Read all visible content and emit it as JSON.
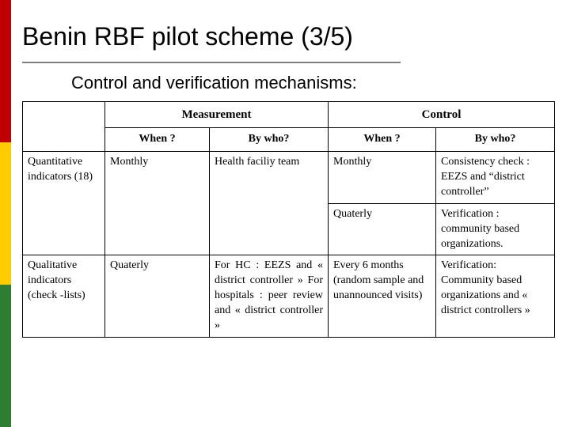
{
  "stripe_colors": [
    "#c00000",
    "#ffcc00",
    "#2e7d32"
  ],
  "title": "Benin RBF pilot scheme (3/5)",
  "title_underline_color": "#808080",
  "subtitle": "Control and verification mechanisms:",
  "table": {
    "group_headers": [
      "Measurement",
      "Control"
    ],
    "sub_headers": [
      "When ?",
      "By who?",
      "When ?",
      "By who?"
    ],
    "rows": [
      {
        "row_label": "Quantitative indicators (18)",
        "row_label_rowspan": 2,
        "cells": [
          {
            "text": "Monthly",
            "rowspan": 2
          },
          {
            "text": "Health faciliy team",
            "rowspan": 2
          },
          {
            "text": "Monthly"
          },
          {
            "text": "Consistency check : EEZS and “district controller”"
          }
        ]
      },
      {
        "cells": [
          {
            "text": "Quaterly"
          },
          {
            "text": "Verification : community based organizations."
          }
        ]
      },
      {
        "row_label": "Qualitative indicators (check -lists)",
        "cells": [
          {
            "text": "Quaterly"
          },
          {
            "text": "For HC : EEZS and « district controller » For hospitals : peer review and « district controller »",
            "justify": true
          },
          {
            "text": "Every 6 months (random sample and unannounced visits)"
          },
          {
            "text": "Verification: Community based organizations and « district controllers »"
          }
        ]
      }
    ]
  }
}
